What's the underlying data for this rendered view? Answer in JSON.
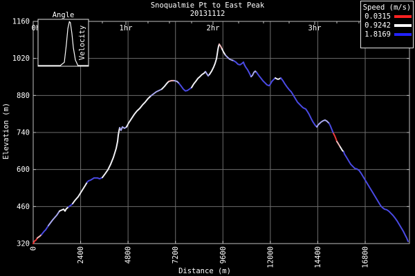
{
  "title": {
    "line1": "Snoqualmie Pt to East Peak",
    "line2": "20131112"
  },
  "legend": {
    "title": "Speed (m/s)",
    "entries": [
      {
        "label": "0.0315",
        "color": "#ff2222"
      },
      {
        "label": "0.9242",
        "color": "#ffffff"
      },
      {
        "label": "1.8169",
        "color": "#2222ff"
      }
    ]
  },
  "inset": {
    "title": "Angle",
    "side_label": "Velocity"
  },
  "chart_data": {
    "type": "line",
    "title": "Snoqualmie Pt to East Peak",
    "subtitle": "20131112",
    "xlabel": "Distance (m)",
    "ylabel": "Elevation (m)",
    "xlim": [
      0,
      19040
    ],
    "ylim": [
      320,
      1160
    ],
    "xticks": [
      0,
      2400,
      4800,
      7200,
      9600,
      12000,
      14400,
      16800
    ],
    "yticks": [
      320,
      460,
      600,
      740,
      880,
      1020,
      1160
    ],
    "grid": true,
    "grid_color": "#6e6e6e",
    "border_color": "#c0c0c0",
    "background": "#000000",
    "legend_position": "top-right",
    "time_axis": {
      "label_unit": "hr",
      "major_ticks": [
        {
          "label": "0hr",
          "distance_m": 245
        },
        {
          "label": "1hr",
          "distance_m": 4690
        },
        {
          "label": "2hr",
          "distance_m": 9100
        },
        {
          "label": "3hr",
          "distance_m": 14245
        }
      ],
      "minor_tick_distances_m": [
        1190,
        2345,
        3500,
        5810,
        6895,
        8015,
        10395,
        11655,
        12950,
        15365,
        16485
      ]
    },
    "speed_color_scale": {
      "red": "#ee3a3a",
      "pink": "#f2b9b9",
      "white": "#f2f2f6",
      "lavender": "#a9a9ef",
      "blue": "#4a4ae4"
    },
    "profile_segments": [
      {
        "color": "red",
        "points": [
          [
            0,
            320
          ],
          [
            70,
            330
          ],
          [
            140,
            333
          ],
          [
            210,
            341
          ]
        ]
      },
      {
        "color": "pink",
        "points": [
          [
            210,
            341
          ],
          [
            350,
            349
          ],
          [
            420,
            354
          ]
        ]
      },
      {
        "color": "blue",
        "points": [
          [
            420,
            354
          ],
          [
            560,
            367
          ],
          [
            630,
            372
          ],
          [
            770,
            388
          ]
        ]
      },
      {
        "color": "lavender",
        "points": [
          [
            770,
            388
          ],
          [
            980,
            409
          ],
          [
            1190,
            427
          ],
          [
            1330,
            443
          ]
        ]
      },
      {
        "color": "white",
        "points": [
          [
            1330,
            443
          ],
          [
            1540,
            450
          ],
          [
            1610,
            443
          ],
          [
            1680,
            452
          ],
          [
            1785,
            458
          ]
        ]
      },
      {
        "color": "blue",
        "points": [
          [
            1785,
            458
          ],
          [
            1925,
            466
          ],
          [
            1995,
            471
          ]
        ]
      },
      {
        "color": "white",
        "points": [
          [
            1995,
            471
          ],
          [
            2100,
            482
          ],
          [
            2275,
            497
          ],
          [
            2450,
            518
          ],
          [
            2625,
            539
          ],
          [
            2730,
            552
          ]
        ]
      },
      {
        "color": "blue",
        "points": [
          [
            2730,
            552
          ],
          [
            2800,
            557
          ],
          [
            2905,
            560
          ],
          [
            3080,
            568
          ],
          [
            3255,
            568
          ],
          [
            3360,
            565
          ],
          [
            3500,
            570
          ]
        ]
      },
      {
        "color": "white",
        "points": [
          [
            3500,
            570
          ],
          [
            3640,
            584
          ],
          [
            3780,
            599
          ],
          [
            3920,
            620
          ],
          [
            4060,
            646
          ],
          [
            4200,
            680
          ],
          [
            4270,
            706
          ],
          [
            4305,
            730
          ],
          [
            4340,
            745
          ],
          [
            4375,
            758
          ]
        ]
      },
      {
        "color": "lavender",
        "points": [
          [
            4375,
            758
          ],
          [
            4445,
            748
          ],
          [
            4515,
            761
          ],
          [
            4620,
            756
          ],
          [
            4725,
            761
          ]
        ]
      },
      {
        "color": "white",
        "points": [
          [
            4725,
            761
          ],
          [
            4830,
            776
          ],
          [
            4970,
            792
          ],
          [
            5110,
            808
          ],
          [
            5250,
            821
          ],
          [
            5390,
            831
          ],
          [
            5530,
            844
          ],
          [
            5670,
            855
          ],
          [
            5810,
            868
          ],
          [
            5950,
            878
          ]
        ]
      },
      {
        "color": "lavender",
        "points": [
          [
            5950,
            878
          ],
          [
            6090,
            886
          ],
          [
            6230,
            894
          ],
          [
            6370,
            899
          ],
          [
            6510,
            904
          ]
        ]
      },
      {
        "color": "white",
        "points": [
          [
            6510,
            904
          ],
          [
            6650,
            915
          ],
          [
            6755,
            925
          ],
          [
            6860,
            933
          ]
        ]
      },
      {
        "color": "pink",
        "points": [
          [
            6860,
            933
          ],
          [
            7000,
            936
          ],
          [
            7140,
            936
          ]
        ]
      },
      {
        "color": "lavender",
        "points": [
          [
            7140,
            936
          ],
          [
            7280,
            933
          ],
          [
            7385,
            925
          ]
        ]
      },
      {
        "color": "blue",
        "points": [
          [
            7385,
            925
          ],
          [
            7490,
            915
          ],
          [
            7595,
            904
          ],
          [
            7700,
            897
          ],
          [
            7805,
            899
          ],
          [
            7910,
            904
          ],
          [
            8015,
            910
          ]
        ]
      },
      {
        "color": "white",
        "points": [
          [
            8015,
            910
          ],
          [
            8120,
            923
          ],
          [
            8225,
            933
          ],
          [
            8330,
            944
          ],
          [
            8435,
            951
          ],
          [
            8540,
            959
          ],
          [
            8645,
            964
          ],
          [
            8715,
            970
          ]
        ]
      },
      {
        "color": "lavender",
        "points": [
          [
            8715,
            970
          ],
          [
            8785,
            962
          ],
          [
            8855,
            954
          ],
          [
            8925,
            960
          ]
        ]
      },
      {
        "color": "white",
        "points": [
          [
            8925,
            960
          ],
          [
            9030,
            972
          ],
          [
            9135,
            988
          ],
          [
            9205,
            1001
          ],
          [
            9275,
            1019
          ],
          [
            9310,
            1035
          ],
          [
            9345,
            1053
          ],
          [
            9380,
            1066
          ],
          [
            9415,
            1074
          ]
        ]
      },
      {
        "color": "pink",
        "points": [
          [
            9415,
            1074
          ],
          [
            9485,
            1066
          ],
          [
            9555,
            1056
          ]
        ]
      },
      {
        "color": "white",
        "points": [
          [
            9555,
            1056
          ],
          [
            9625,
            1045
          ],
          [
            9730,
            1032
          ]
        ]
      },
      {
        "color": "lavender",
        "points": [
          [
            9730,
            1032
          ],
          [
            9835,
            1024
          ],
          [
            9940,
            1017
          ],
          [
            10045,
            1014
          ],
          [
            10150,
            1011
          ]
        ]
      },
      {
        "color": "blue",
        "points": [
          [
            10150,
            1011
          ],
          [
            10255,
            1006
          ],
          [
            10360,
            998
          ],
          [
            10465,
            996
          ],
          [
            10570,
            1001
          ],
          [
            10640,
            1006
          ],
          [
            10675,
            998
          ],
          [
            10745,
            988
          ],
          [
            10850,
            977
          ],
          [
            10955,
            962
          ],
          [
            11025,
            951
          ]
        ]
      },
      {
        "color": "lavender",
        "points": [
          [
            11025,
            951
          ],
          [
            11095,
            956
          ],
          [
            11165,
            967
          ],
          [
            11235,
            972
          ],
          [
            11305,
            967
          ]
        ]
      },
      {
        "color": "blue",
        "points": [
          [
            11305,
            967
          ],
          [
            11410,
            956
          ],
          [
            11515,
            946
          ],
          [
            11620,
            936
          ],
          [
            11725,
            928
          ],
          [
            11830,
            920
          ],
          [
            11935,
            917
          ],
          [
            12005,
            923
          ],
          [
            12075,
            933
          ],
          [
            12180,
            941
          ],
          [
            12250,
            946
          ]
        ]
      },
      {
        "color": "white",
        "points": [
          [
            12250,
            946
          ],
          [
            12320,
            943
          ],
          [
            12390,
            941
          ],
          [
            12460,
            943
          ],
          [
            12530,
            946
          ]
        ]
      },
      {
        "color": "blue",
        "points": [
          [
            12530,
            946
          ],
          [
            12635,
            936
          ],
          [
            12740,
            923
          ],
          [
            12845,
            912
          ],
          [
            12950,
            902
          ],
          [
            13055,
            894
          ],
          [
            13160,
            881
          ],
          [
            13265,
            868
          ],
          [
            13370,
            855
          ],
          [
            13475,
            847
          ],
          [
            13580,
            839
          ],
          [
            13650,
            834
          ],
          [
            13720,
            831
          ],
          [
            13790,
            829
          ],
          [
            13860,
            821
          ],
          [
            13965,
            808
          ],
          [
            14070,
            792
          ],
          [
            14140,
            782
          ],
          [
            14210,
            774
          ],
          [
            14280,
            766
          ],
          [
            14350,
            761
          ]
        ]
      },
      {
        "color": "lavender",
        "points": [
          [
            14350,
            761
          ],
          [
            14420,
            769
          ],
          [
            14490,
            774
          ],
          [
            14560,
            779
          ],
          [
            14665,
            784
          ],
          [
            14770,
            787
          ],
          [
            14875,
            782
          ],
          [
            14980,
            774
          ]
        ]
      },
      {
        "color": "blue",
        "points": [
          [
            14980,
            774
          ],
          [
            15050,
            763
          ],
          [
            15120,
            750
          ],
          [
            15190,
            737
          ]
        ]
      },
      {
        "color": "red",
        "points": [
          [
            15190,
            737
          ],
          [
            15260,
            727
          ],
          [
            15330,
            714
          ],
          [
            15365,
            706
          ]
        ]
      },
      {
        "color": "pink",
        "points": [
          [
            15365,
            706
          ],
          [
            15435,
            698
          ],
          [
            15540,
            685
          ]
        ]
      },
      {
        "color": "white",
        "points": [
          [
            15540,
            685
          ],
          [
            15645,
            672
          ],
          [
            15715,
            667
          ]
        ]
      },
      {
        "color": "blue",
        "points": [
          [
            15715,
            667
          ],
          [
            15750,
            659
          ],
          [
            15855,
            646
          ],
          [
            15960,
            633
          ],
          [
            16065,
            620
          ],
          [
            16170,
            612
          ],
          [
            16275,
            604
          ],
          [
            16380,
            602
          ],
          [
            16485,
            597
          ],
          [
            16590,
            586
          ],
          [
            16695,
            573
          ],
          [
            16800,
            560
          ],
          [
            16905,
            547
          ],
          [
            17010,
            534
          ],
          [
            17115,
            521
          ],
          [
            17220,
            508
          ],
          [
            17325,
            495
          ],
          [
            17430,
            482
          ],
          [
            17535,
            469
          ],
          [
            17605,
            461
          ],
          [
            17675,
            456
          ],
          [
            17780,
            450
          ],
          [
            17885,
            448
          ],
          [
            17990,
            443
          ],
          [
            18095,
            435
          ],
          [
            18200,
            427
          ],
          [
            18305,
            417
          ],
          [
            18410,
            406
          ],
          [
            18515,
            393
          ],
          [
            18620,
            380
          ],
          [
            18725,
            367
          ],
          [
            18830,
            351
          ],
          [
            18900,
            341
          ],
          [
            18970,
            328
          ]
        ]
      }
    ],
    "inset": {
      "title": "Angle",
      "side_label": "Velocity",
      "curve_normalized": [
        [
          0,
          1
        ],
        [
          0.44,
          1
        ],
        [
          0.52,
          0.93
        ],
        [
          0.56,
          0.55
        ],
        [
          0.59,
          0.2
        ],
        [
          0.62,
          0.05
        ],
        [
          0.64,
          0.07
        ],
        [
          0.67,
          0.3
        ],
        [
          0.7,
          0.62
        ],
        [
          0.74,
          0.88
        ],
        [
          0.79,
          1
        ],
        [
          1,
          1
        ]
      ]
    }
  }
}
